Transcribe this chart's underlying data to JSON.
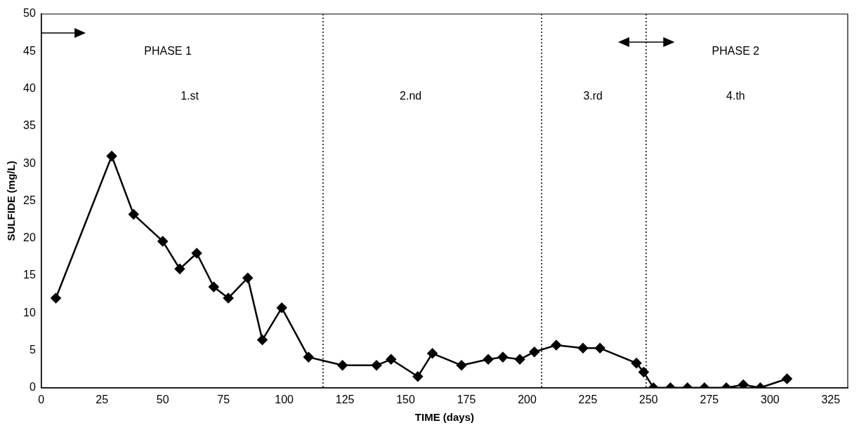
{
  "chart_data": {
    "type": "line",
    "xlabel": "TIME (days)",
    "ylabel": "SULFIDE (mg/L)",
    "x": [
      6,
      29,
      38,
      50,
      57,
      64,
      71,
      77,
      85,
      91,
      99,
      110,
      124,
      138,
      144,
      155,
      161,
      173,
      184,
      190,
      197,
      203,
      212,
      223,
      230,
      245,
      248,
      252,
      259,
      266,
      273,
      282,
      289,
      296,
      307
    ],
    "series": [
      {
        "color": "#000000",
        "values": [
          12,
          31,
          23.2,
          19.6,
          15.9,
          18,
          13.5,
          12,
          14.7,
          6.4,
          10.7,
          4.1,
          3,
          3,
          3.8,
          1.5,
          4.6,
          3,
          3.8,
          4.1,
          3.8,
          4.8,
          5.7,
          5.3,
          5.3,
          3.3,
          2.1,
          0,
          0,
          0,
          0,
          0,
          0.4,
          0,
          1.2
        ]
      }
    ],
    "xlim": [
      0,
      332
    ],
    "xticks": [
      0,
      25,
      50,
      75,
      100,
      125,
      150,
      175,
      200,
      225,
      250,
      275,
      300,
      325
    ],
    "ylim": [
      0,
      50
    ],
    "yticks": [
      0,
      5,
      10,
      15,
      20,
      25,
      30,
      35,
      40,
      45,
      50
    ],
    "grid": false,
    "legend": false,
    "marker": "diamond",
    "line_style": "solid",
    "ref_lines": [
      {
        "axis": "x",
        "value": 116,
        "line_style": "dotted",
        "color": "#000000"
      },
      {
        "axis": "x",
        "value": 206,
        "line_style": "dotted",
        "color": "#000000"
      },
      {
        "axis": "x",
        "value": 249,
        "line_style": "dotted",
        "color": "#000000"
      }
    ],
    "annotations": [
      "PHASE 1",
      "PHASE 2",
      "1.st",
      "2.nd",
      "3.rd",
      "4.th"
    ]
  }
}
